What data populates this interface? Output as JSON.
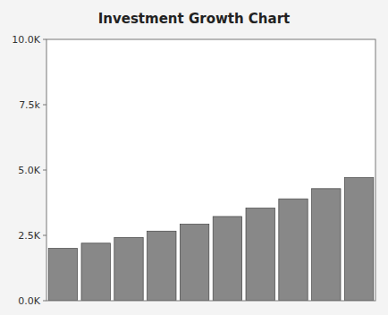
{
  "chart_data": {
    "type": "bar",
    "title": "Investment Growth Chart",
    "categories": [
      null,
      null,
      null,
      null,
      null,
      null,
      null,
      null,
      null,
      null
    ],
    "values": [
      2000,
      2200,
      2420,
      2662,
      2928.2,
      3221.02,
      3543.122,
      3897.4342,
      4287.17762,
      4715.895382
    ],
    "color": "#888888",
    "ylim": [
      0,
      10000
    ],
    "yticks": [
      {
        "value": 0,
        "label": "0.0K"
      },
      {
        "value": 2500,
        "label": "2.5K"
      },
      {
        "value": 5000,
        "label": "5.0K"
      },
      {
        "value": 7500,
        "label": "7.5k"
      },
      {
        "value": 10000,
        "label": "10.0K"
      }
    ],
    "grid": false,
    "tick_labels": "y"
  }
}
